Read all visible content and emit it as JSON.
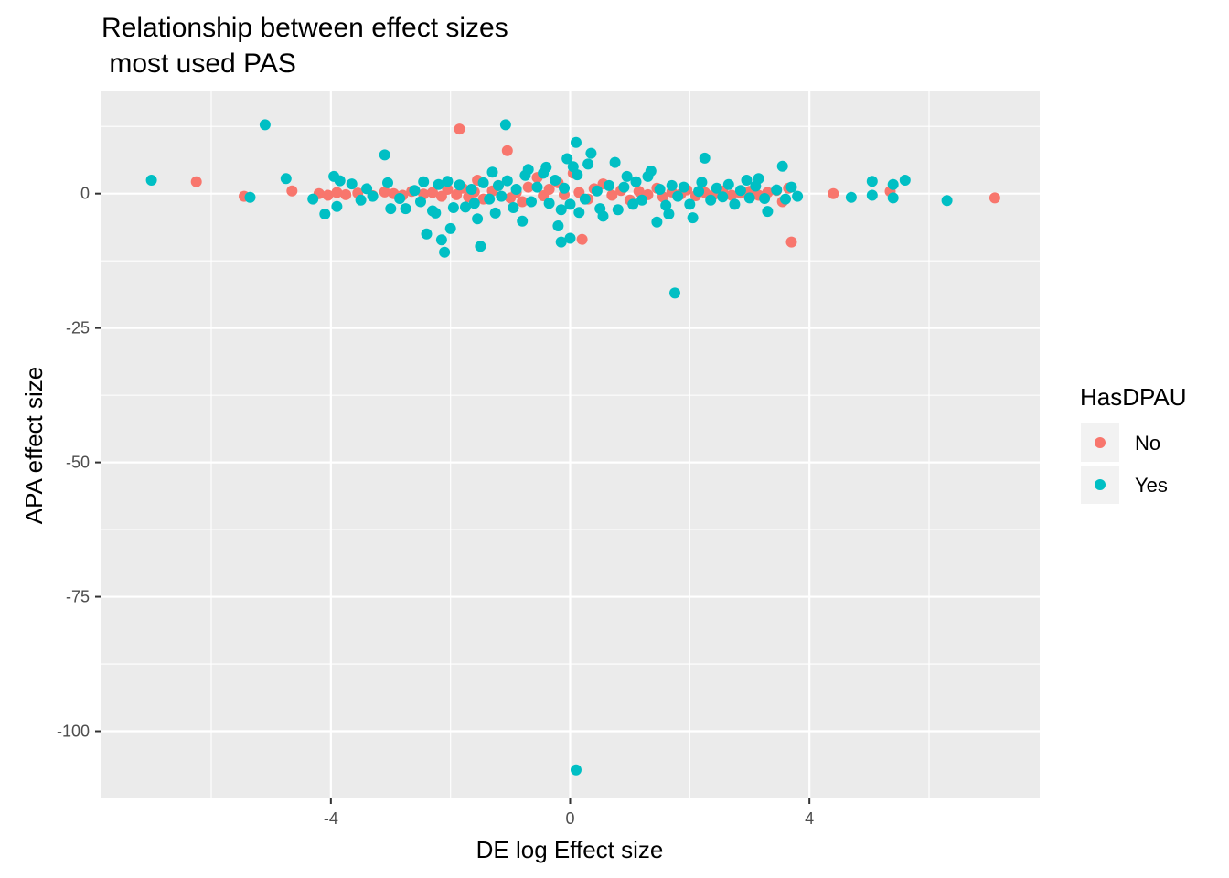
{
  "chart_data": {
    "type": "scatter",
    "title_lines": [
      "Relationship between effect sizes",
      " most used PAS"
    ],
    "xlabel": "DE log Effect size",
    "ylabel": "APA effect size",
    "xlim": [
      -7.85,
      7.85
    ],
    "ylim": [
      -112.5,
      19.0
    ],
    "x_ticks": [
      -4,
      0,
      4
    ],
    "x_tick_labels": [
      "-4",
      "0",
      "4"
    ],
    "x_minor_ticks": [
      -6,
      -2,
      2,
      6
    ],
    "y_ticks": [
      0,
      -25,
      -50,
      -75,
      -100
    ],
    "y_tick_labels": [
      "0",
      "-25",
      "-50",
      "-75",
      "-100"
    ],
    "y_minor_ticks": [
      12.5,
      -12.5,
      -37.5,
      -62.5,
      -87.5,
      -112.5
    ],
    "grid": true,
    "legend": {
      "title": "HasDPAU",
      "position": "right",
      "entries": [
        {
          "label": "No",
          "color": "#F8766D"
        },
        {
          "label": "Yes",
          "color": "#00BFC4"
        }
      ]
    },
    "series": [
      {
        "name": "No",
        "color": "#F8766D",
        "points": [
          [
            -6.25,
            2.2
          ],
          [
            -5.45,
            -0.5
          ],
          [
            -4.65,
            0.5
          ],
          [
            -4.2,
            0.0
          ],
          [
            -4.05,
            -0.3
          ],
          [
            -3.9,
            0.2
          ],
          [
            -3.75,
            -0.2
          ],
          [
            -3.55,
            0.1
          ],
          [
            -3.3,
            -0.4
          ],
          [
            -3.1,
            0.3
          ],
          [
            -2.95,
            0.0
          ],
          [
            -2.8,
            -0.3
          ],
          [
            -2.65,
            0.4
          ],
          [
            -2.45,
            -0.1
          ],
          [
            -2.3,
            0.2
          ],
          [
            -2.15,
            -0.5
          ],
          [
            -2.05,
            0.8
          ],
          [
            -1.9,
            -0.2
          ],
          [
            -1.8,
            1.0
          ],
          [
            -1.85,
            12.0
          ],
          [
            -1.7,
            -0.6
          ],
          [
            -1.6,
            0.3
          ],
          [
            -1.55,
            2.5
          ],
          [
            -1.45,
            -1.0
          ],
          [
            -1.3,
            0.5
          ],
          [
            -1.2,
            1.5
          ],
          [
            -1.05,
            8.0
          ],
          [
            -1.0,
            -0.8
          ],
          [
            -0.9,
            0.2
          ],
          [
            -0.8,
            -1.5
          ],
          [
            -0.7,
            1.2
          ],
          [
            -0.55,
            3.0
          ],
          [
            -0.45,
            -0.4
          ],
          [
            -0.35,
            0.8
          ],
          [
            -0.2,
            2.0
          ],
          [
            -0.1,
            -0.2
          ],
          [
            0.05,
            3.8
          ],
          [
            0.15,
            0.2
          ],
          [
            0.2,
            -8.5
          ],
          [
            0.3,
            -1.0
          ],
          [
            0.4,
            0.9
          ],
          [
            0.55,
            1.8
          ],
          [
            0.7,
            -0.3
          ],
          [
            0.85,
            0.6
          ],
          [
            1.0,
            -1.2
          ],
          [
            1.15,
            0.4
          ],
          [
            1.3,
            -0.2
          ],
          [
            1.45,
            1.0
          ],
          [
            1.55,
            -0.6
          ],
          [
            1.7,
            0.3
          ],
          [
            1.85,
            -0.1
          ],
          [
            1.95,
            0.7
          ],
          [
            2.1,
            -0.4
          ],
          [
            2.25,
            0.2
          ],
          [
            2.4,
            -0.2
          ],
          [
            2.55,
            0.5
          ],
          [
            2.7,
            -0.3
          ],
          [
            2.85,
            0.1
          ],
          [
            3.0,
            0.4
          ],
          [
            3.15,
            -0.3
          ],
          [
            3.3,
            0.2
          ],
          [
            3.45,
            0.6
          ],
          [
            3.55,
            -1.5
          ],
          [
            3.65,
            1.0
          ],
          [
            3.7,
            -9.0
          ],
          [
            4.4,
            0.0
          ],
          [
            5.35,
            0.4
          ],
          [
            7.1,
            -0.8
          ]
        ]
      },
      {
        "name": "Yes",
        "color": "#00BFC4",
        "points": [
          [
            -7.0,
            2.5
          ],
          [
            -5.35,
            -0.7
          ],
          [
            -5.1,
            12.8
          ],
          [
            -4.75,
            2.8
          ],
          [
            -4.3,
            -1.0
          ],
          [
            -4.1,
            -3.8
          ],
          [
            -3.95,
            3.2
          ],
          [
            -3.9,
            -2.4
          ],
          [
            -3.85,
            2.4
          ],
          [
            -3.65,
            1.8
          ],
          [
            -3.5,
            -1.2
          ],
          [
            -3.4,
            0.9
          ],
          [
            -3.3,
            -0.5
          ],
          [
            -3.1,
            7.2
          ],
          [
            -3.05,
            2.0
          ],
          [
            -3.0,
            -2.8
          ],
          [
            -2.85,
            -0.9
          ],
          [
            -2.75,
            -2.8
          ],
          [
            -2.6,
            0.6
          ],
          [
            -2.5,
            -1.5
          ],
          [
            -2.45,
            2.2
          ],
          [
            -2.4,
            -7.5
          ],
          [
            -2.3,
            -3.2
          ],
          [
            -2.25,
            -3.6
          ],
          [
            -2.2,
            1.7
          ],
          [
            -2.15,
            -8.6
          ],
          [
            -2.1,
            -10.9
          ],
          [
            -2.05,
            2.3
          ],
          [
            -2.0,
            -6.5
          ],
          [
            -1.95,
            -2.6
          ],
          [
            -1.85,
            1.6
          ],
          [
            -1.75,
            -2.5
          ],
          [
            -1.65,
            0.8
          ],
          [
            -1.6,
            -1.8
          ],
          [
            -1.55,
            -4.7
          ],
          [
            -1.5,
            -9.8
          ],
          [
            -1.45,
            2.0
          ],
          [
            -1.35,
            -1.0
          ],
          [
            -1.3,
            4.0
          ],
          [
            -1.25,
            -3.6
          ],
          [
            -1.2,
            1.5
          ],
          [
            -1.15,
            -0.5
          ],
          [
            -1.08,
            12.8
          ],
          [
            -1.05,
            2.4
          ],
          [
            -0.95,
            -2.6
          ],
          [
            -0.9,
            0.8
          ],
          [
            -0.8,
            -5.1
          ],
          [
            -0.75,
            3.4
          ],
          [
            -0.7,
            4.5
          ],
          [
            -0.65,
            -1.5
          ],
          [
            -0.55,
            1.2
          ],
          [
            -0.45,
            3.8
          ],
          [
            -0.4,
            4.9
          ],
          [
            -0.35,
            -1.8
          ],
          [
            -0.25,
            2.5
          ],
          [
            -0.2,
            -6.0
          ],
          [
            -0.15,
            -3.0
          ],
          [
            -0.1,
            1.0
          ],
          [
            -0.05,
            6.5
          ],
          [
            0.0,
            -2.0
          ],
          [
            0.05,
            5.0
          ],
          [
            0.1,
            9.5
          ],
          [
            0.12,
            3.5
          ],
          [
            0.15,
            -3.5
          ],
          [
            0.1,
            -107.2
          ],
          [
            -0.15,
            -9.0
          ],
          [
            0.0,
            -8.3
          ],
          [
            0.25,
            -1.0
          ],
          [
            0.3,
            5.5
          ],
          [
            0.35,
            7.5
          ],
          [
            0.45,
            0.5
          ],
          [
            0.5,
            -2.8
          ],
          [
            0.55,
            -4.2
          ],
          [
            0.65,
            1.5
          ],
          [
            0.75,
            5.8
          ],
          [
            0.8,
            -3.0
          ],
          [
            0.9,
            1.2
          ],
          [
            0.95,
            3.2
          ],
          [
            1.05,
            -2.0
          ],
          [
            1.1,
            2.2
          ],
          [
            1.2,
            -1.2
          ],
          [
            1.3,
            3.2
          ],
          [
            1.35,
            4.2
          ],
          [
            1.45,
            -5.3
          ],
          [
            1.5,
            0.8
          ],
          [
            1.6,
            -2.2
          ],
          [
            1.65,
            -3.8
          ],
          [
            1.7,
            1.5
          ],
          [
            1.75,
            -18.5
          ],
          [
            1.8,
            -0.5
          ],
          [
            1.9,
            1.2
          ],
          [
            2.0,
            -2.0
          ],
          [
            2.05,
            -4.5
          ],
          [
            2.15,
            0.4
          ],
          [
            2.2,
            2.1
          ],
          [
            2.25,
            6.6
          ],
          [
            2.35,
            -1.2
          ],
          [
            2.45,
            1.0
          ],
          [
            2.55,
            -0.6
          ],
          [
            2.65,
            1.7
          ],
          [
            2.75,
            -2.0
          ],
          [
            2.85,
            0.6
          ],
          [
            2.95,
            2.5
          ],
          [
            3.0,
            -0.8
          ],
          [
            3.1,
            1.4
          ],
          [
            3.15,
            2.8
          ],
          [
            3.25,
            -0.9
          ],
          [
            3.3,
            -3.3
          ],
          [
            3.45,
            0.7
          ],
          [
            3.55,
            5.1
          ],
          [
            3.6,
            -1.0
          ],
          [
            3.7,
            1.2
          ],
          [
            3.8,
            -0.5
          ],
          [
            4.7,
            -0.7
          ],
          [
            5.05,
            2.3
          ],
          [
            5.05,
            -0.3
          ],
          [
            5.4,
            -0.8
          ],
          [
            5.4,
            1.7
          ],
          [
            5.6,
            2.5
          ],
          [
            6.3,
            -1.3
          ]
        ]
      }
    ]
  }
}
